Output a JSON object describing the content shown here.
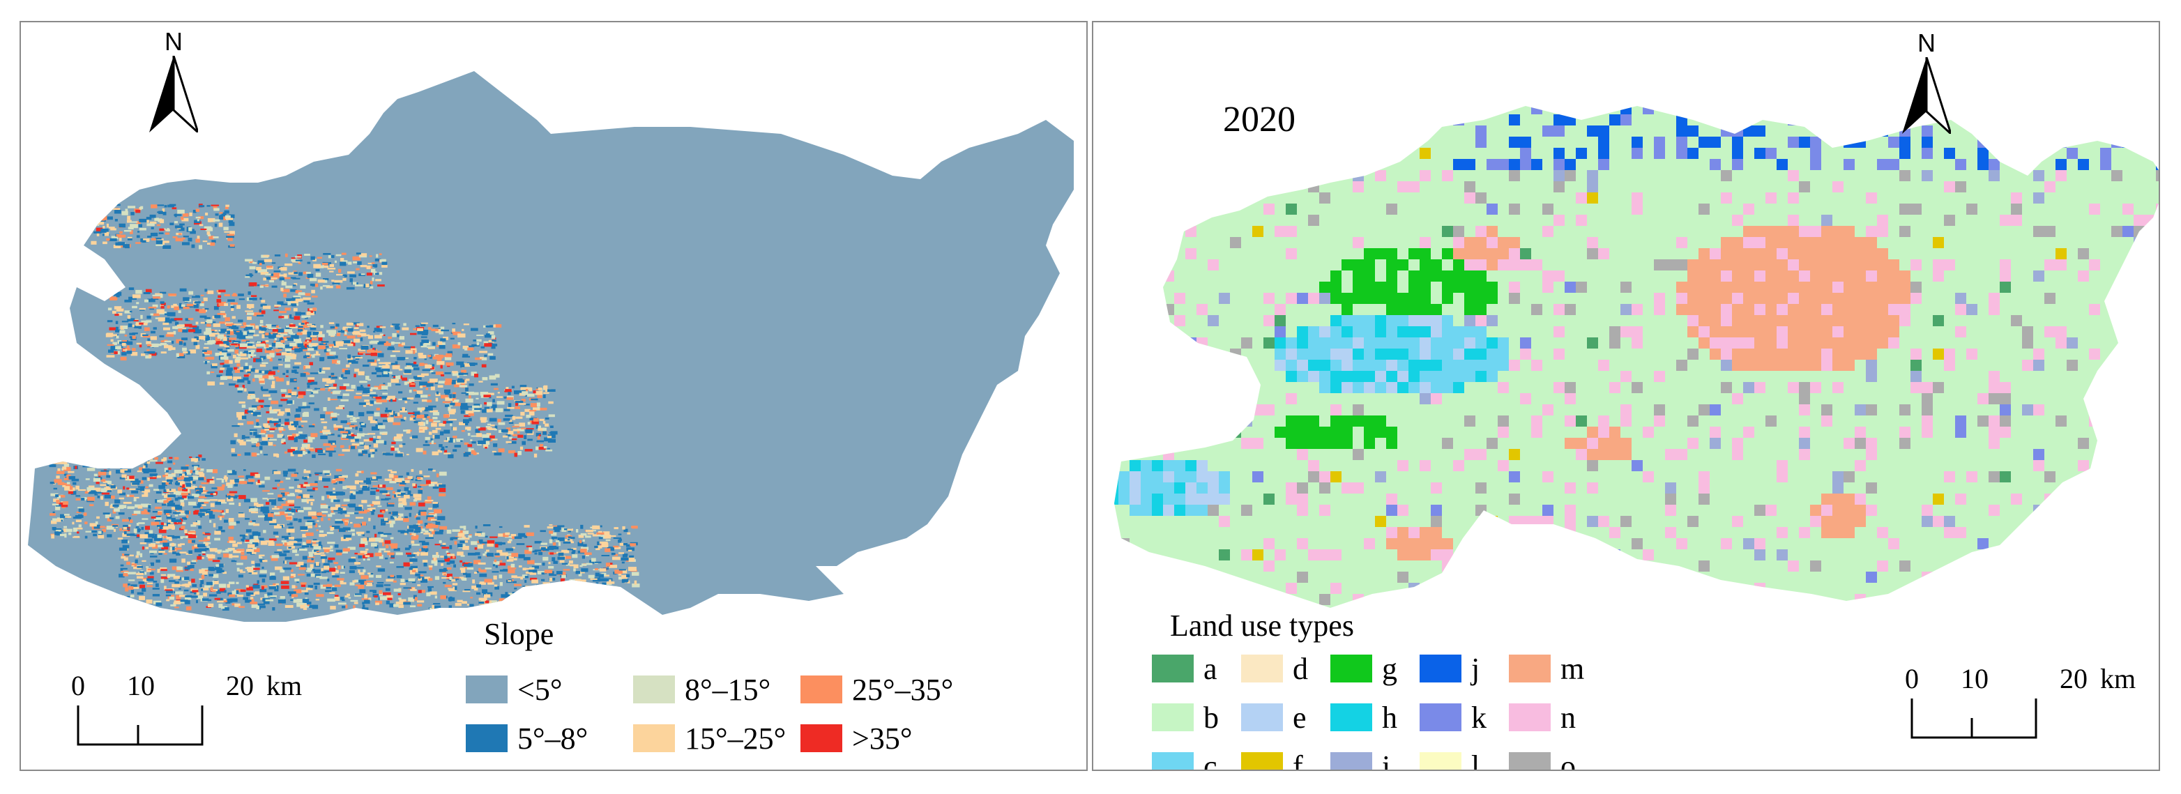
{
  "left_panel": {
    "north_label": "N",
    "legend": {
      "title": "Slope",
      "items": [
        {
          "label": "<5°",
          "color": "#82a5bc"
        },
        {
          "label": "5°–8°",
          "color": "#1f78b4"
        },
        {
          "label": "8°–15°",
          "color": "#d6e1c2"
        },
        {
          "label": "15°–25°",
          "color": "#fcd49c"
        },
        {
          "label": "25°–35°",
          "color": "#fc8f5f"
        },
        {
          "label": ">35°",
          "color": "#ee2b24"
        }
      ]
    },
    "scale": {
      "ticks": [
        "0",
        "10",
        "20"
      ],
      "unit": "km"
    }
  },
  "right_panel": {
    "year": "2020",
    "north_label": "N",
    "legend": {
      "title": "Land use types",
      "items": [
        {
          "label": "a",
          "color": "#4aa66a"
        },
        {
          "label": "b",
          "color": "#c6f5c4"
        },
        {
          "label": "c",
          "color": "#6fd6f2"
        },
        {
          "label": "d",
          "color": "#fbe8c2"
        },
        {
          "label": "e",
          "color": "#b4d2f4"
        },
        {
          "label": "f",
          "color": "#e2c600"
        },
        {
          "label": "g",
          "color": "#10c81c"
        },
        {
          "label": "h",
          "color": "#14d2e4"
        },
        {
          "label": "i",
          "color": "#9cacd8"
        },
        {
          "label": "j",
          "color": "#0a62e8"
        },
        {
          "label": "k",
          "color": "#7a8ae8"
        },
        {
          "label": "l",
          "color": "#fcfcc2"
        },
        {
          "label": "m",
          "color": "#f8a882"
        },
        {
          "label": "n",
          "color": "#f8bce0"
        },
        {
          "label": "o",
          "color": "#acacac"
        }
      ]
    },
    "scale": {
      "ticks": [
        "0",
        "10",
        "20"
      ],
      "unit": "km"
    }
  }
}
